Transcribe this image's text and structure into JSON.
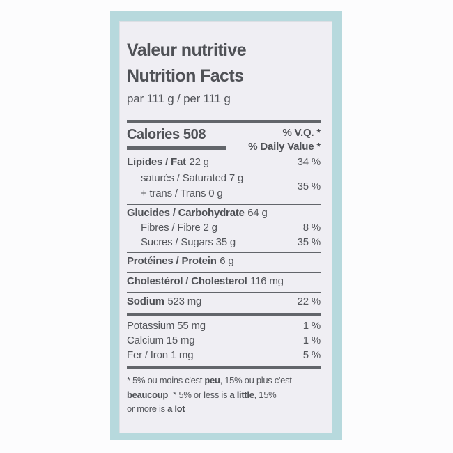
{
  "label": {
    "title_fr": "Valeur nutritive",
    "title_en": "Nutrition Facts",
    "serving": "par 111 g / per 111 g",
    "calories": {
      "text": "Calories 508",
      "dv_header_fr": "% V.Q. *",
      "dv_header_en": "% Daily Value *"
    },
    "rows": {
      "fat": {
        "bold": "Lipides / Fat",
        "amount": "22 g",
        "dv": "34 %"
      },
      "satfat": {
        "line1": "saturés / Saturated 7 g",
        "line2": "+ trans / Trans 0 g",
        "dv": "35 %"
      },
      "carb": {
        "bold": "Glucides / Carbohydrate",
        "amount": "64 g",
        "dv": ""
      },
      "fibre": {
        "text": "Fibres / Fibre 2 g",
        "dv": "8 %"
      },
      "sugars": {
        "text": "Sucres / Sugars 35 g",
        "dv": "35 %"
      },
      "protein": {
        "bold": "Protéines / Protein",
        "amount": "6 g"
      },
      "cholesterol": {
        "bold": "Cholestérol / Cholesterol",
        "amount": "116 mg"
      },
      "sodium": {
        "bold": "Sodium",
        "amount": "523 mg",
        "dv": "22 %"
      },
      "potassium": {
        "text": "Potassium 55 mg",
        "dv": "1 %"
      },
      "calcium": {
        "text": "Calcium 15 mg",
        "dv": "1 %"
      },
      "iron": {
        "text": "Fer / Iron 1 mg",
        "dv": "5 %"
      }
    },
    "footnote": {
      "l1a": "* 5% ou moins c'est ",
      "l1b": "peu",
      "l1c": ", 15% ou plus c'est",
      "l2a": "beaucoup",
      "l2b": " * 5% or less is ",
      "l2c": "a little",
      "l2d": ", 15%",
      "l3a": "or more is ",
      "l3b": "a lot"
    },
    "colors": {
      "frame": "#b7d9dd",
      "paper": "#efeef3",
      "text": "#53555a",
      "rule": "#62656a",
      "page_background": "#fcfcfd"
    }
  }
}
